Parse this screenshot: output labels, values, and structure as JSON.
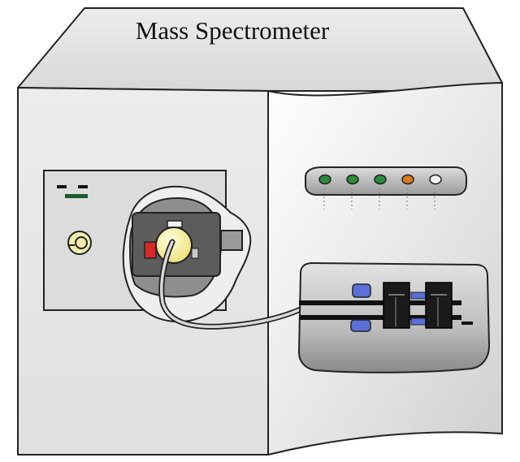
{
  "title": "Mass Spectrometer",
  "status_lights": [
    {
      "name": "status-light-1",
      "color": "#2e8b3a"
    },
    {
      "name": "status-light-2",
      "color": "#2e8b3a"
    },
    {
      "name": "status-light-3",
      "color": "#2e8b3a"
    },
    {
      "name": "status-light-4",
      "color": "#e07a1a"
    },
    {
      "name": "status-light-5",
      "color": "#f4f4f4"
    }
  ],
  "colors": {
    "body_light": "#e8e8e8",
    "body_mid": "#d0d0d0",
    "outline": "#222222",
    "ion_source_yellow": "#f7f2a8",
    "red_component": "#d62828",
    "blue_component": "#5a6fd8",
    "valve_black": "#1a1a1a"
  },
  "icons": [
    "capillary-tube",
    "ion-source",
    "inlet-valve",
    "status-lights"
  ]
}
